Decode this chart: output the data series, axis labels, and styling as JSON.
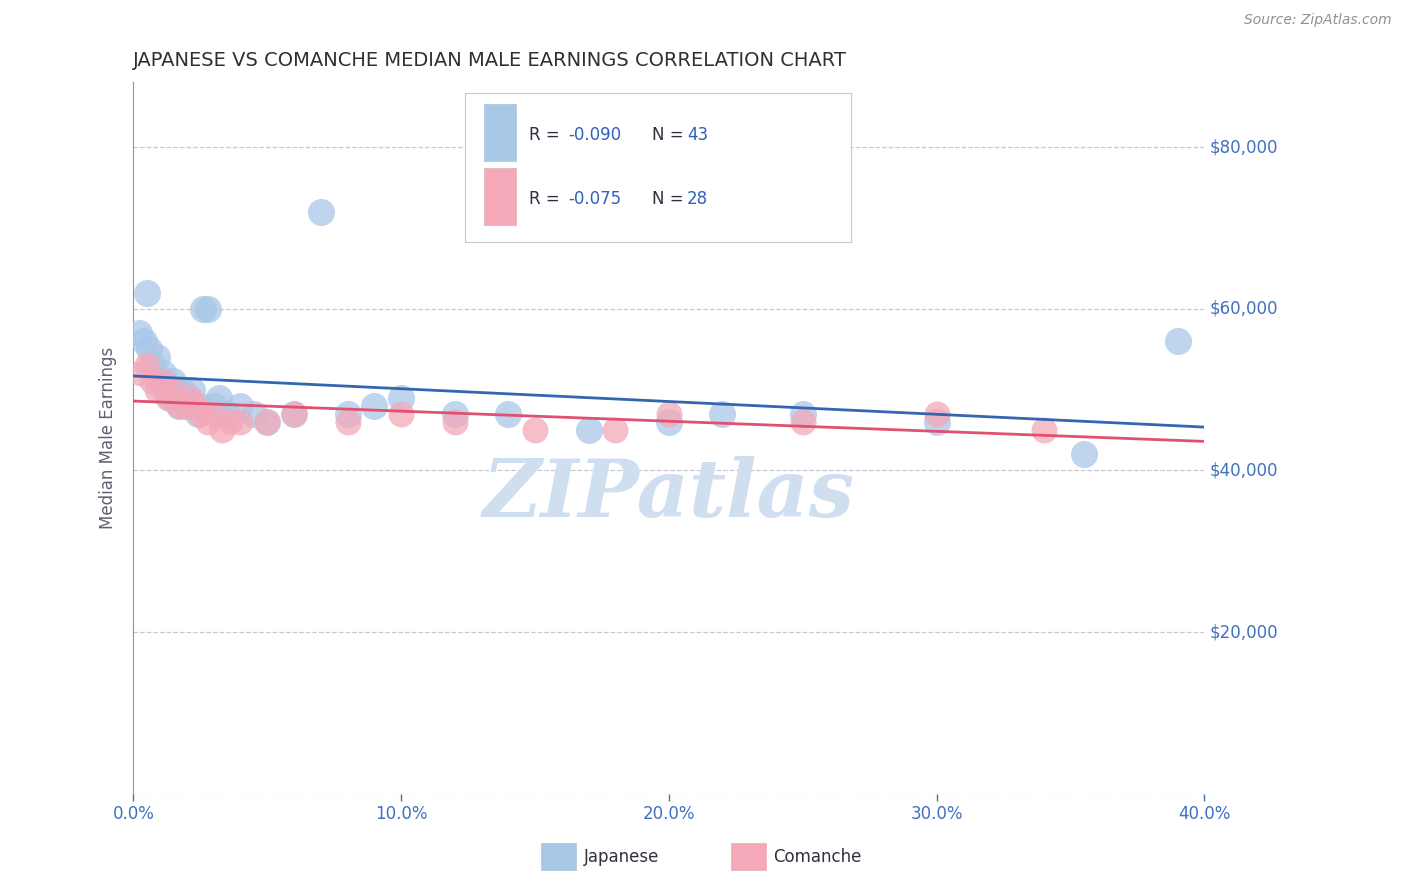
{
  "title": "JAPANESE VS COMANCHE MEDIAN MALE EARNINGS CORRELATION CHART",
  "source_text": "Source: ZipAtlas.com",
  "ylabel": "Median Male Earnings",
  "xlim": [
    0.0,
    0.4
  ],
  "ylim": [
    0,
    88000
  ],
  "yticks": [
    0,
    20000,
    40000,
    60000,
    80000
  ],
  "ytick_labels": [
    "",
    "$20,000",
    "$40,000",
    "$60,000",
    "$80,000"
  ],
  "xticks": [
    0.0,
    0.1,
    0.2,
    0.3,
    0.4
  ],
  "xtick_labels": [
    "0.0%",
    "10.0%",
    "20.0%",
    "30.0%",
    "40.0%"
  ],
  "legend_R1": "R = ",
  "legend_R1_val": "-0.090",
  "legend_N1": "N = ",
  "legend_N1_val": "43",
  "legend_R2": "R = ",
  "legend_R2_val": "-0.075",
  "legend_N2": "N = ",
  "legend_N2_val": "28",
  "japanese_color": "#a8c8e8",
  "comanche_color": "#f4a8b8",
  "trendline_japanese_color": "#3465b0",
  "trendline_comanche_color": "#e05070",
  "background_color": "#ffffff",
  "grid_color": "#c8c8d8",
  "title_color": "#303030",
  "axis_color": "#9090a0",
  "watermark_color": "#d0dff0",
  "tick_color": "#4070c0",
  "right_label_color": "#4070c0",
  "japanese_x": [
    0.002,
    0.004,
    0.005,
    0.006,
    0.007,
    0.008,
    0.009,
    0.01,
    0.011,
    0.012,
    0.013,
    0.014,
    0.015,
    0.016,
    0.017,
    0.018,
    0.019,
    0.02,
    0.022,
    0.024,
    0.025,
    0.026,
    0.028,
    0.03,
    0.032,
    0.035,
    0.04,
    0.045,
    0.05,
    0.06,
    0.07,
    0.08,
    0.09,
    0.1,
    0.12,
    0.14,
    0.17,
    0.2,
    0.22,
    0.25,
    0.3,
    0.355,
    0.39
  ],
  "japanese_y": [
    57000,
    56000,
    62000,
    55000,
    53000,
    52000,
    54000,
    51000,
    52000,
    50000,
    50000,
    49000,
    51000,
    50000,
    48000,
    50000,
    49000,
    48000,
    50000,
    47000,
    48000,
    60000,
    60000,
    48000,
    49000,
    47000,
    48000,
    47000,
    46000,
    47000,
    72000,
    47000,
    48000,
    49000,
    47000,
    47000,
    45000,
    46000,
    47000,
    47000,
    46000,
    42000,
    56000
  ],
  "comanche_x": [
    0.003,
    0.005,
    0.007,
    0.009,
    0.011,
    0.013,
    0.015,
    0.017,
    0.019,
    0.021,
    0.023,
    0.025,
    0.028,
    0.03,
    0.033,
    0.036,
    0.04,
    0.05,
    0.06,
    0.08,
    0.1,
    0.12,
    0.15,
    0.18,
    0.2,
    0.25,
    0.3,
    0.34
  ],
  "comanche_y": [
    52000,
    53000,
    51000,
    50000,
    51000,
    49000,
    50000,
    48000,
    48000,
    49000,
    48000,
    47000,
    46000,
    47000,
    45000,
    46000,
    46000,
    46000,
    47000,
    46000,
    47000,
    46000,
    45000,
    45000,
    47000,
    46000,
    47000,
    45000
  ]
}
